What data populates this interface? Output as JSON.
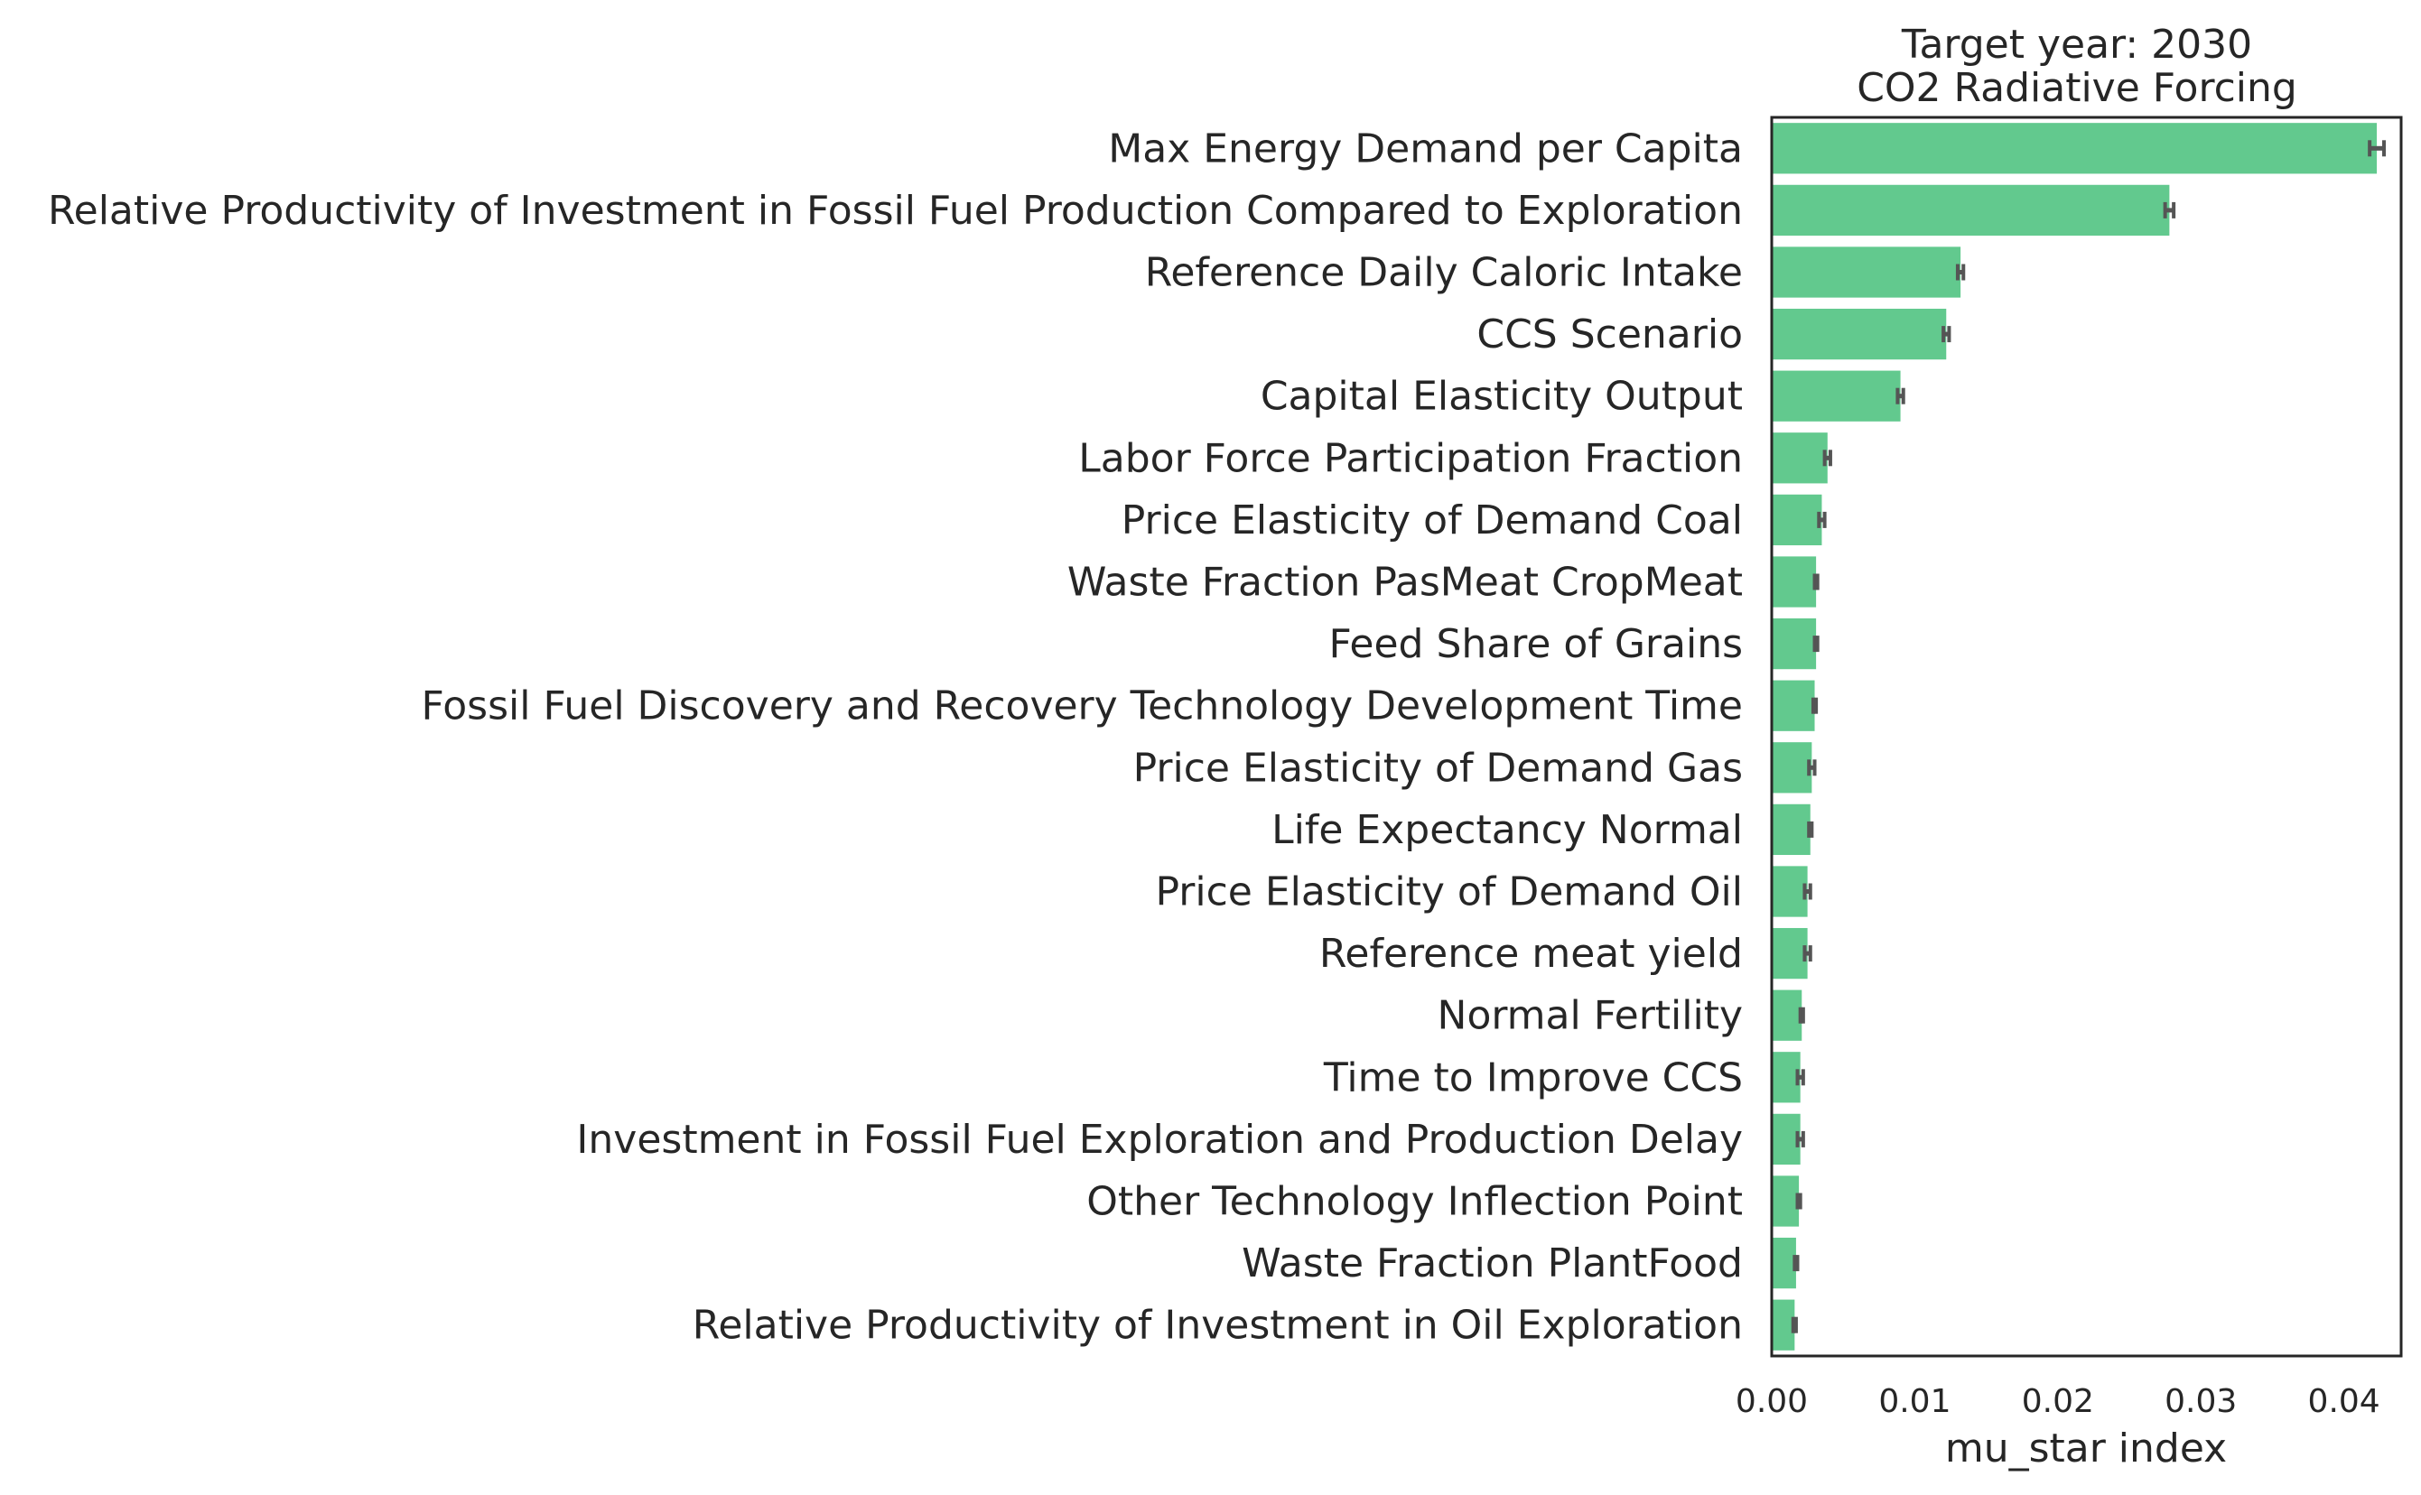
{
  "chart_data": {
    "type": "bar",
    "orientation": "horizontal",
    "title_lines": [
      "Target year: 2030",
      "CO2 Radiative Forcing"
    ],
    "xlabel": "mu_star index",
    "ylabel": "",
    "xlim": [
      0,
      0.044
    ],
    "xticks": [
      "0.00",
      "0.01",
      "0.02",
      "0.03",
      "0.04"
    ],
    "xtick_values": [
      0,
      0.01,
      0.02,
      0.03,
      0.04
    ],
    "grid": false,
    "bar_color": "#62c98e",
    "error_color": "#555555",
    "categories": [
      "Max Energy Demand per Capita",
      "Relative Productivity of Investment in Fossil Fuel Production Compared to Exploration",
      "Reference Daily Caloric Intake",
      "CCS Scenario",
      "Capital Elasticity Output",
      "Labor Force Participation Fraction",
      "Price Elasticity of Demand Coal",
      "Waste Fraction PasMeat CropMeat",
      "Feed Share of Grains",
      "Fossil Fuel Discovery and Recovery Technology Development Time",
      "Price Elasticity of Demand Gas",
      "Life Expectancy Normal",
      "Price Elasticity of Demand Oil",
      "Reference meat yield",
      "Normal Fertility",
      "Time to Improve CCS",
      "Investment in Fossil Fuel Exploration and Production Delay",
      "Other Technology Inflection Point",
      "Waste Fraction PlantFood",
      "Relative Productivity of Investment in Oil Exploration"
    ],
    "values": [
      0.0423,
      0.0278,
      0.0132,
      0.0122,
      0.009,
      0.0039,
      0.0035,
      0.0031,
      0.0031,
      0.003,
      0.0028,
      0.0027,
      0.0025,
      0.0025,
      0.0021,
      0.002,
      0.002,
      0.0019,
      0.0017,
      0.0016
    ],
    "errors": [
      0.0005,
      0.0003,
      0.0002,
      0.0002,
      0.0002,
      0.0002,
      0.0002,
      0.0001,
      0.0001,
      0.0001,
      0.0002,
      0.0001,
      0.0002,
      0.0002,
      0.0001,
      0.0002,
      0.0002,
      0.0001,
      0.0001,
      0.0001
    ]
  }
}
